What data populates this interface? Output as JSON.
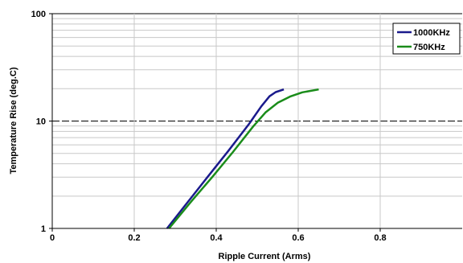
{
  "chart_data": {
    "type": "line",
    "xlabel": "Ripple Current (Arms)",
    "ylabel": "Temperature Rise (deg.C)",
    "xlim": [
      0,
      1
    ],
    "ylim": [
      1,
      100
    ],
    "yscale": "log",
    "x_ticks": [
      "0",
      "0.2",
      "0.4",
      "0.6",
      "0.8"
    ],
    "y_ticks": [
      "1",
      "10",
      "100"
    ],
    "grid": true,
    "legend_position": "top-right",
    "series": [
      {
        "name": "1000KHz",
        "color": "#1a1a8c",
        "points": [
          [
            0.28,
            1.0
          ],
          [
            0.33,
            1.75
          ],
          [
            0.38,
            3.05
          ],
          [
            0.43,
            5.3
          ],
          [
            0.48,
            9.4
          ],
          [
            0.51,
            13.7
          ],
          [
            0.53,
            17.0
          ],
          [
            0.545,
            18.6
          ],
          [
            0.565,
            19.7
          ]
        ]
      },
      {
        "name": "750KHz",
        "color": "#1a8c1a",
        "points": [
          [
            0.285,
            1.0
          ],
          [
            0.34,
            1.8
          ],
          [
            0.39,
            3.0
          ],
          [
            0.44,
            5.1
          ],
          [
            0.49,
            8.9
          ],
          [
            0.52,
            12.0
          ],
          [
            0.55,
            14.8
          ],
          [
            0.58,
            16.9
          ],
          [
            0.61,
            18.5
          ],
          [
            0.65,
            19.7
          ]
        ]
      }
    ]
  }
}
